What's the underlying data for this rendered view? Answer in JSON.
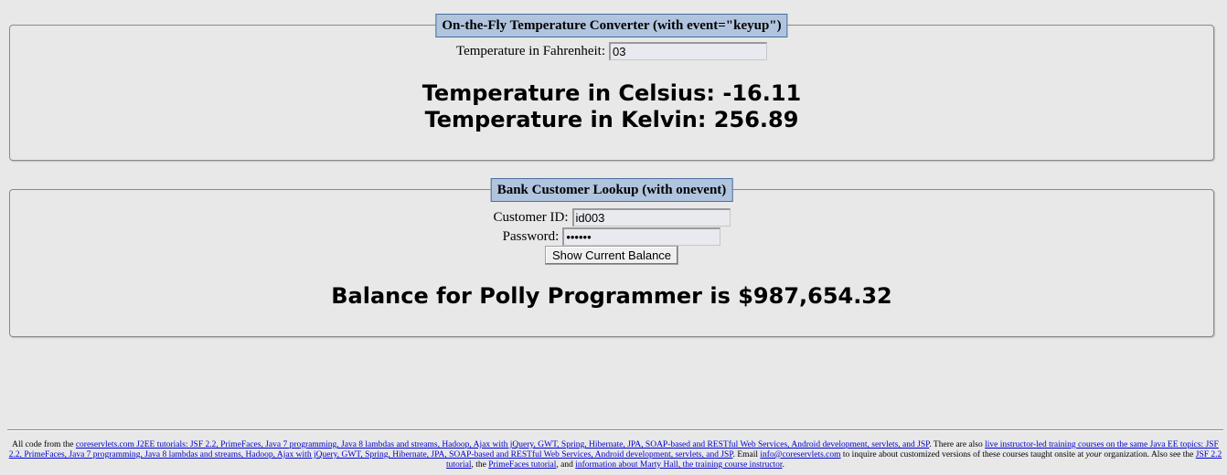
{
  "temperature": {
    "legend": "On-the-Fly Temperature Converter (with event=\"keyup\")",
    "fahrenheit_label": "Temperature in Fahrenheit:",
    "fahrenheit_value": "03",
    "celsius_text": "Temperature in Celsius: -16.11",
    "kelvin_text": "Temperature in Kelvin: 256.89"
  },
  "bank": {
    "legend": "Bank Customer Lookup (with onevent)",
    "customer_id_label": "Customer ID:",
    "customer_id_value": "id003",
    "password_label": "Password:",
    "password_value": "••••••",
    "button_label": "Show Current Balance",
    "result_text": "Balance for Polly Programmer is $987,654.32"
  },
  "footer": {
    "t1": "All code from the ",
    "l1": "coreservlets.com J2EE tutorials: JSF 2.2, PrimeFaces, Java 7 programming, Java 8 lambdas and streams, Hadoop, Ajax with jQuery, GWT, Spring, Hibernate, JPA, SOAP-based and RESTful Web Services, Android development, servlets, and JSP",
    "t2": ". There are also ",
    "l2": "live instructor-led training courses on the same Java EE topics: JSF 2.2, PrimeFaces, Java 7 programming, Java 8 lambdas and streams, Hadoop, Ajax with jQuery, GWT, Spring, Hibernate, JPA, SOAP-based and RESTful Web Services, Android development, servlets, and JSP",
    "t3": ". Email ",
    "l3": "info@coreservlets.com",
    "t4": " to inquire about customized versions of these courses taught onsite at ",
    "t4_em": "your",
    "t5": " organization. Also see the ",
    "l4": "JSF 2.2 tutorial",
    "t6": ", the ",
    "l5": "PrimeFaces tutorial",
    "t7": ", and ",
    "l6": "information about Marty Hall, the training course instructor",
    "t8": "."
  }
}
